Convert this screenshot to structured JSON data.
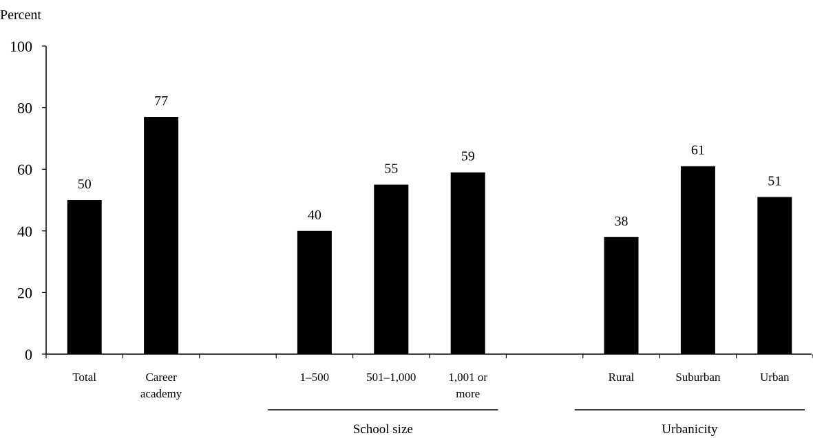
{
  "chart_data": {
    "type": "bar",
    "ylabel": "Percent",
    "ylim": [
      0,
      100
    ],
    "yticks": [
      "0",
      "20",
      "40",
      "60",
      "80",
      "100"
    ],
    "grid": false,
    "categories": [
      {
        "label": [
          "Total"
        ],
        "value": 50,
        "value_label": "50"
      },
      {
        "label": [
          "Career",
          "academy"
        ],
        "value": 77,
        "value_label": "77"
      },
      {
        "label": [],
        "value": null,
        "value_label": ""
      },
      {
        "label": [
          "1–500"
        ],
        "value": 40,
        "value_label": "40"
      },
      {
        "label": [
          "501–1,000"
        ],
        "value": 55,
        "value_label": "55"
      },
      {
        "label": [
          "1,001 or",
          "more"
        ],
        "value": 59,
        "value_label": "59"
      },
      {
        "label": [],
        "value": null,
        "value_label": ""
      },
      {
        "label": [
          "Rural"
        ],
        "value": 38,
        "value_label": "38"
      },
      {
        "label": [
          "Suburban"
        ],
        "value": 61,
        "value_label": "61"
      },
      {
        "label": [
          "Urban"
        ],
        "value": 51,
        "value_label": "51"
      }
    ],
    "groups": [
      {
        "label": "School size",
        "from": 3,
        "to": 5
      },
      {
        "label": "Urbanicity",
        "from": 7,
        "to": 9
      }
    ],
    "bar_color": "#000000",
    "axis_color": "#000000"
  }
}
